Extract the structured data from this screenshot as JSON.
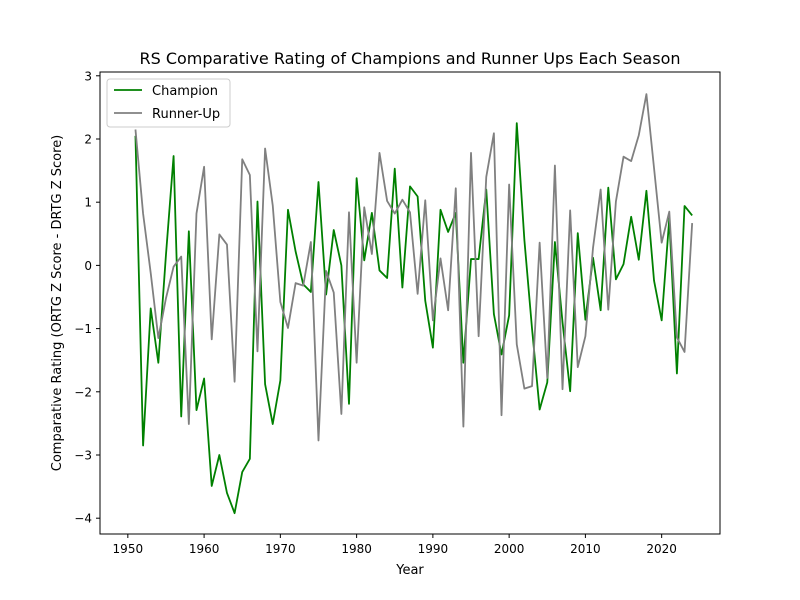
{
  "chart_data": {
    "type": "line",
    "title": "RS Comparative Rating of Champions and Runner Ups Each Season",
    "xlabel": "Year",
    "ylabel": "Comparative Rating (ORTG Z Score - DRTG Z Score)",
    "xlim": [
      1946.35,
      2027.65
    ],
    "ylim": [
      -4.25,
      3.06
    ],
    "xticks": [
      1950,
      1960,
      1970,
      1980,
      1990,
      2000,
      2010,
      2020
    ],
    "yticks": [
      3,
      2,
      1,
      0,
      -1,
      -2,
      -3,
      -4
    ],
    "ytick_labels": [
      "3",
      "2",
      "1",
      "0",
      "−1",
      "−2",
      "−3",
      "−4"
    ],
    "grid": false,
    "legend_position": "top-left",
    "x": [
      1951,
      1952,
      1953,
      1954,
      1955,
      1956,
      1957,
      1958,
      1959,
      1960,
      1961,
      1962,
      1963,
      1964,
      1965,
      1966,
      1967,
      1968,
      1969,
      1970,
      1971,
      1972,
      1973,
      1974,
      1975,
      1976,
      1977,
      1978,
      1979,
      1980,
      1981,
      1982,
      1983,
      1984,
      1985,
      1986,
      1987,
      1988,
      1989,
      1990,
      1991,
      1992,
      1993,
      1994,
      1995,
      1996,
      1997,
      1998,
      1999,
      2000,
      2001,
      2002,
      2003,
      2004,
      2005,
      2006,
      2007,
      2008,
      2009,
      2010,
      2011,
      2012,
      2013,
      2014,
      2015,
      2016,
      2017,
      2018,
      2019,
      2020,
      2021,
      2022,
      2023,
      2024
    ],
    "series": [
      {
        "name": "Champion",
        "color": "#008000",
        "values": [
          2.05,
          -2.85,
          -0.68,
          -1.54,
          0.17,
          1.73,
          -2.39,
          0.54,
          -2.29,
          -1.79,
          -3.49,
          -3.0,
          -3.6,
          -3.92,
          -3.27,
          -3.06,
          1.01,
          -1.88,
          -2.51,
          -1.82,
          0.88,
          0.22,
          -0.3,
          -0.42,
          1.32,
          -0.46,
          0.56,
          0.0,
          -2.19,
          1.38,
          0.08,
          0.83,
          -0.08,
          -0.2,
          1.53,
          -0.35,
          1.25,
          1.09,
          -0.56,
          -1.3,
          0.88,
          0.53,
          0.83,
          -1.54,
          0.1,
          0.1,
          1.2,
          -0.77,
          -1.41,
          -0.79,
          2.25,
          0.4,
          -1.0,
          -2.28,
          -1.85,
          0.37,
          -0.9,
          -1.99,
          0.51,
          -0.86,
          0.12,
          -0.71,
          1.23,
          -0.22,
          0.02,
          0.77,
          0.09,
          1.18,
          -0.24,
          -0.87,
          0.74,
          -1.71,
          0.94,
          0.79
        ]
      },
      {
        "name": "Runner-Up",
        "color": "#808080",
        "values": [
          2.15,
          0.82,
          -0.12,
          -1.15,
          -0.52,
          -0.02,
          0.14,
          -2.51,
          0.82,
          1.56,
          -1.17,
          0.49,
          0.33,
          -1.84,
          1.68,
          1.43,
          -1.36,
          1.85,
          0.95,
          -0.58,
          -0.99,
          -0.28,
          -0.32,
          0.37,
          -2.77,
          -0.09,
          -0.43,
          -2.35,
          0.84,
          -1.54,
          0.92,
          0.18,
          1.78,
          1.02,
          0.82,
          1.04,
          0.84,
          -0.45,
          1.03,
          -0.87,
          0.11,
          -0.71,
          1.22,
          -2.55,
          1.78,
          -1.12,
          1.4,
          2.09,
          -2.37,
          1.28,
          -1.25,
          -1.95,
          -1.91,
          0.36,
          -1.78,
          1.58,
          -1.96,
          0.87,
          -1.61,
          -1.12,
          0.28,
          1.2,
          -0.7,
          1.01,
          1.72,
          1.65,
          2.06,
          2.71,
          1.54,
          0.36,
          0.85,
          -1.14,
          -1.37,
          0.67
        ]
      }
    ]
  }
}
